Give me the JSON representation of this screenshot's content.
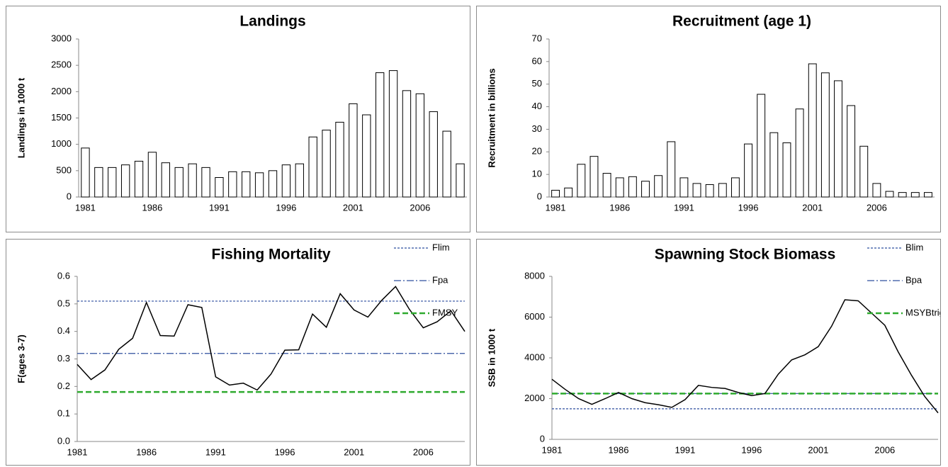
{
  "chart_data": [
    {
      "type": "bar",
      "title": "Landings",
      "y_label": "Landings in 1000 t",
      "categories": [
        "1981",
        null,
        null,
        null,
        null,
        "1986",
        null,
        null,
        null,
        null,
        "1991",
        null,
        null,
        null,
        null,
        "1996",
        null,
        null,
        null,
        null,
        "2001",
        null,
        null,
        null,
        null,
        "2006",
        null,
        null,
        null
      ],
      "values": [
        930,
        560,
        560,
        610,
        680,
        850,
        650,
        560,
        630,
        560,
        370,
        480,
        480,
        460,
        500,
        610,
        630,
        1140,
        1270,
        1420,
        1770,
        1560,
        2360,
        2400,
        2020,
        1960,
        1620,
        1250,
        630
      ],
      "color": "#ffffff",
      "ylim": [
        0,
        3000
      ],
      "yticks": [
        0,
        500,
        1000,
        1500,
        2000,
        2500,
        3000
      ]
    },
    {
      "type": "bar",
      "title": "Recruitment (age 1)",
      "y_label": "Recruitment in billions",
      "categories": [
        "1981",
        null,
        null,
        null,
        null,
        "1986",
        null,
        null,
        null,
        null,
        "1991",
        null,
        null,
        null,
        null,
        "1996",
        null,
        null,
        null,
        null,
        "2001",
        null,
        null,
        null,
        null,
        "2006",
        null,
        null,
        null,
        null
      ],
      "values": [
        3,
        4,
        14.5,
        18,
        10.5,
        8.5,
        9,
        7,
        9.5,
        24.5,
        8.5,
        6,
        5.5,
        6,
        8.5,
        23.5,
        45.5,
        28.5,
        24,
        39,
        59,
        55,
        51.5,
        40.5,
        22.5,
        6,
        2.5,
        2,
        2,
        2
      ],
      "color": "#ffffff",
      "ylim": [
        0,
        70
      ],
      "yticks": [
        0,
        10,
        20,
        30,
        40,
        50,
        60,
        70
      ]
    },
    {
      "type": "line",
      "title": "Fishing Mortality",
      "y_label": "F(ages 3-7)",
      "categories": [
        "1981",
        null,
        null,
        null,
        null,
        "1986",
        null,
        null,
        null,
        null,
        "1991",
        null,
        null,
        null,
        null,
        "1996",
        null,
        null,
        null,
        null,
        "2001",
        null,
        null,
        null,
        null,
        "2006",
        null,
        null,
        null
      ],
      "series": [
        {
          "name": "Flim",
          "color": "#2f4f9f",
          "style": "dotted",
          "values": [
            0.51,
            0.51,
            0.51,
            0.51,
            0.51,
            0.51,
            0.51,
            0.51,
            0.51,
            0.51,
            0.51,
            0.51,
            0.51,
            0.51,
            0.51,
            0.51,
            0.51,
            0.51,
            0.51,
            0.51,
            0.51,
            0.51,
            0.51,
            0.51,
            0.51,
            0.51,
            0.51,
            0.51,
            0.51
          ]
        },
        {
          "name": "Fpa",
          "color": "#2f4f9f",
          "style": "dashdot",
          "values": [
            0.32,
            0.32,
            0.32,
            0.32,
            0.32,
            0.32,
            0.32,
            0.32,
            0.32,
            0.32,
            0.32,
            0.32,
            0.32,
            0.32,
            0.32,
            0.32,
            0.32,
            0.32,
            0.32,
            0.32,
            0.32,
            0.32,
            0.32,
            0.32,
            0.32,
            0.32,
            0.32,
            0.32,
            0.32
          ]
        },
        {
          "name": "FMSY",
          "color": "#2eaa2e",
          "style": "dashed",
          "values": [
            0.18,
            0.18,
            0.18,
            0.18,
            0.18,
            0.18,
            0.18,
            0.18,
            0.18,
            0.18,
            0.18,
            0.18,
            0.18,
            0.18,
            0.18,
            0.18,
            0.18,
            0.18,
            0.18,
            0.18,
            0.18,
            0.18,
            0.18,
            0.18,
            0.18,
            0.18,
            0.18,
            0.18,
            0.18
          ]
        },
        {
          "color": "#000000",
          "style": "solid",
          "values": [
            0.28,
            0.225,
            0.26,
            0.335,
            0.375,
            0.505,
            0.385,
            0.383,
            0.497,
            0.487,
            0.235,
            0.205,
            0.212,
            0.187,
            0.245,
            0.332,
            0.333,
            0.463,
            0.415,
            0.537,
            0.478,
            0.452,
            0.513,
            0.563,
            0.48,
            0.413,
            0.435,
            0.475,
            0.4
          ]
        }
      ],
      "ylim": [
        0,
        0.6
      ],
      "yticks": [
        {
          "value": 0,
          "label": "0.0"
        },
        0.1,
        0.2,
        0.3,
        0.4,
        0.5,
        0.6
      ],
      "legend": "top-right"
    },
    {
      "type": "line",
      "title": "Spawning Stock Biomass",
      "y_label": "SSB in 1000 t",
      "categories": [
        "1981",
        null,
        null,
        null,
        null,
        "1986",
        null,
        null,
        null,
        null,
        "1991",
        null,
        null,
        null,
        null,
        "1996",
        null,
        null,
        null,
        null,
        "2001",
        null,
        null,
        null,
        null,
        "2006",
        null,
        null,
        null,
        null
      ],
      "series": [
        {
          "name": "Blim",
          "color": "#2f4f9f",
          "style": "dotted",
          "values": [
            1500,
            1500,
            1500,
            1500,
            1500,
            1500,
            1500,
            1500,
            1500,
            1500,
            1500,
            1500,
            1500,
            1500,
            1500,
            1500,
            1500,
            1500,
            1500,
            1500,
            1500,
            1500,
            1500,
            1500,
            1500,
            1500,
            1500,
            1500,
            1500,
            1500
          ]
        },
        {
          "name": "Bpa",
          "color": "#2f4f9f",
          "style": "dashdot",
          "values": [
            2250,
            2250,
            2250,
            2250,
            2250,
            2250,
            2250,
            2250,
            2250,
            2250,
            2250,
            2250,
            2250,
            2250,
            2250,
            2250,
            2250,
            2250,
            2250,
            2250,
            2250,
            2250,
            2250,
            2250,
            2250,
            2250,
            2250,
            2250,
            2250,
            2250
          ]
        },
        {
          "name": "MSYBtrigger",
          "color": "#2eaa2e",
          "style": "dashed",
          "values": [
            2250,
            2250,
            2250,
            2250,
            2250,
            2250,
            2250,
            2250,
            2250,
            2250,
            2250,
            2250,
            2250,
            2250,
            2250,
            2250,
            2250,
            2250,
            2250,
            2250,
            2250,
            2250,
            2250,
            2250,
            2250,
            2250,
            2250,
            2250,
            2250,
            2250
          ]
        },
        {
          "color": "#000000",
          "style": "solid",
          "values": [
            2950,
            2450,
            2000,
            1720,
            2000,
            2300,
            2000,
            1800,
            1700,
            1570,
            1950,
            2650,
            2550,
            2500,
            2300,
            2150,
            2250,
            3200,
            3900,
            4150,
            4550,
            5550,
            6850,
            6800,
            6200,
            5600,
            4300,
            3150,
            2100,
            1300
          ]
        }
      ],
      "ylim": [
        0,
        8000
      ],
      "yticks": [
        0,
        2000,
        4000,
        6000,
        8000
      ],
      "legend": "top-right"
    }
  ]
}
